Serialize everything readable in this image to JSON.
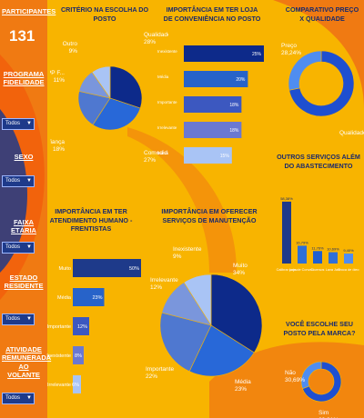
{
  "sidebar": {
    "participants_label": "PARTICIPANTES",
    "participants_value": "131",
    "filters": [
      {
        "label": "PROGRAMA FIDELIDADE",
        "value": "Todos"
      },
      {
        "label": "SEXO",
        "value": "Todos"
      },
      {
        "label": "FAIXA ETÁRIA",
        "value": "Todos"
      },
      {
        "label": "ESTADO RESIDENTE",
        "value": "Todos"
      },
      {
        "label": "ATIVIDADE REMUNERADA AO VOLANTE",
        "value": "Todos"
      }
    ]
  },
  "colors": {
    "background": "#f8b400",
    "orange": "#f07a12",
    "navy": "#1e3a8a",
    "blue": "#2e6fd8",
    "light_blue": "#8fb3f5"
  },
  "chart_data": [
    {
      "id": "criterio",
      "type": "pie",
      "title": "CRITÉRIO NA ESCOLHA DO POSTO",
      "slices": [
        {
          "label": "Qualidade C...",
          "pct_label": "28%",
          "value": 28,
          "color": "#0d2a8a"
        },
        {
          "label": "Comodidade",
          "pct_label": "27%",
          "value": 27,
          "color": "#2868d8"
        },
        {
          "label": "Confiança",
          "pct_label": "18%",
          "value": 18,
          "color": "#4f78d0"
        },
        {
          "label": "APP F...",
          "pct_label": "11%",
          "value": 11,
          "color": "#7a96dc"
        },
        {
          "label": "Outro",
          "pct_label": "9%",
          "value": 9,
          "color": "#a9c4f5"
        }
      ]
    },
    {
      "id": "loja",
      "type": "bar",
      "orientation": "horizontal",
      "title": "IMPORTÂNCIA EM TER LOJA DE CONVENIÊNCIA NO POSTO",
      "categories": [
        "Inexistente",
        "Média",
        "Importante",
        "Irrelevante",
        "Muito"
      ],
      "values": [
        25,
        20,
        18,
        18,
        15
      ],
      "value_labels": [
        "25%",
        "20%",
        "18%",
        "18%",
        "15%"
      ],
      "colors": [
        "#0d2a8a",
        "#2763c9",
        "#3c58c0",
        "#6a78d2",
        "#a9c4f5"
      ]
    },
    {
      "id": "preco",
      "type": "pie",
      "donut": true,
      "title": "COMPARATIVO PREÇO X QUALIDADE",
      "slices": [
        {
          "label": "Qualidade",
          "pct_label": "71,76%",
          "value": 71.76,
          "color": "#1e4fd0"
        },
        {
          "label": "Preço",
          "pct_label": "28,24%",
          "value": 28.24,
          "color": "#4f8df0"
        }
      ]
    },
    {
      "id": "servicos",
      "type": "bar",
      "orientation": "vertical",
      "title": "OUTROS SERVIÇOS ALÉM DO ABASTECIMENTO",
      "categories": [
        "Calibrar pneu",
        "Loja de Conve...",
        "Diversos",
        "Lava Jato",
        "Troca de óleo"
      ],
      "values": [
        58.38,
        16.79,
        11.76,
        10.69,
        9.4
      ],
      "value_labels": [
        "58,38%",
        "16,79%",
        "11,76%",
        "10,69%",
        "9,40%"
      ],
      "colors": [
        "#1e3a8a",
        "#2e6fd8",
        "#1f5fd0",
        "#2e6fd8",
        "#4f8df0"
      ]
    },
    {
      "id": "atendimento",
      "type": "bar",
      "orientation": "horizontal",
      "title": "IMPORTÂNCIA EM TER ATENDIMENTO HUMANO - FRENTISTAS",
      "categories": [
        "Muito",
        "Média",
        "Importante",
        "Inexistente",
        "Irrelevante"
      ],
      "values": [
        50,
        23,
        12,
        8,
        6
      ],
      "value_labels": [
        "50%",
        "23%",
        "12%",
        "8%",
        "6%"
      ],
      "colors": [
        "#1e3a8a",
        "#2763c9",
        "#3c58c0",
        "#6a78d2",
        "#a9c4f5"
      ]
    },
    {
      "id": "manutencao",
      "type": "pie",
      "title": "IMPORTÂNCIA EM OFERECER SERVIÇOS DE MANUTENÇÃO",
      "slices": [
        {
          "label": "Muito",
          "pct_label": "34%",
          "value": 34,
          "color": "#0d2a8a"
        },
        {
          "label": "Média",
          "pct_label": "23%",
          "value": 23,
          "color": "#2868d8"
        },
        {
          "label": "Importante",
          "pct_label": "22%",
          "value": 22,
          "color": "#4f78d0"
        },
        {
          "label": "Irrelevante",
          "pct_label": "12%",
          "value": 12,
          "color": "#7a96dc"
        },
        {
          "label": "Inexistente",
          "pct_label": "9%",
          "value": 9,
          "color": "#a9c4f5"
        }
      ]
    },
    {
      "id": "marca",
      "type": "pie",
      "donut": true,
      "title": "VOCÊ ESCOLHE SEU POSTO PELA MARCA?",
      "slices": [
        {
          "label": "Sim",
          "pct_label": "69,31%",
          "value": 69.31,
          "color": "#1e4fd0"
        },
        {
          "label": "Não",
          "pct_label": "30,69%",
          "value": 30.69,
          "color": "#4f8df0"
        }
      ]
    }
  ]
}
